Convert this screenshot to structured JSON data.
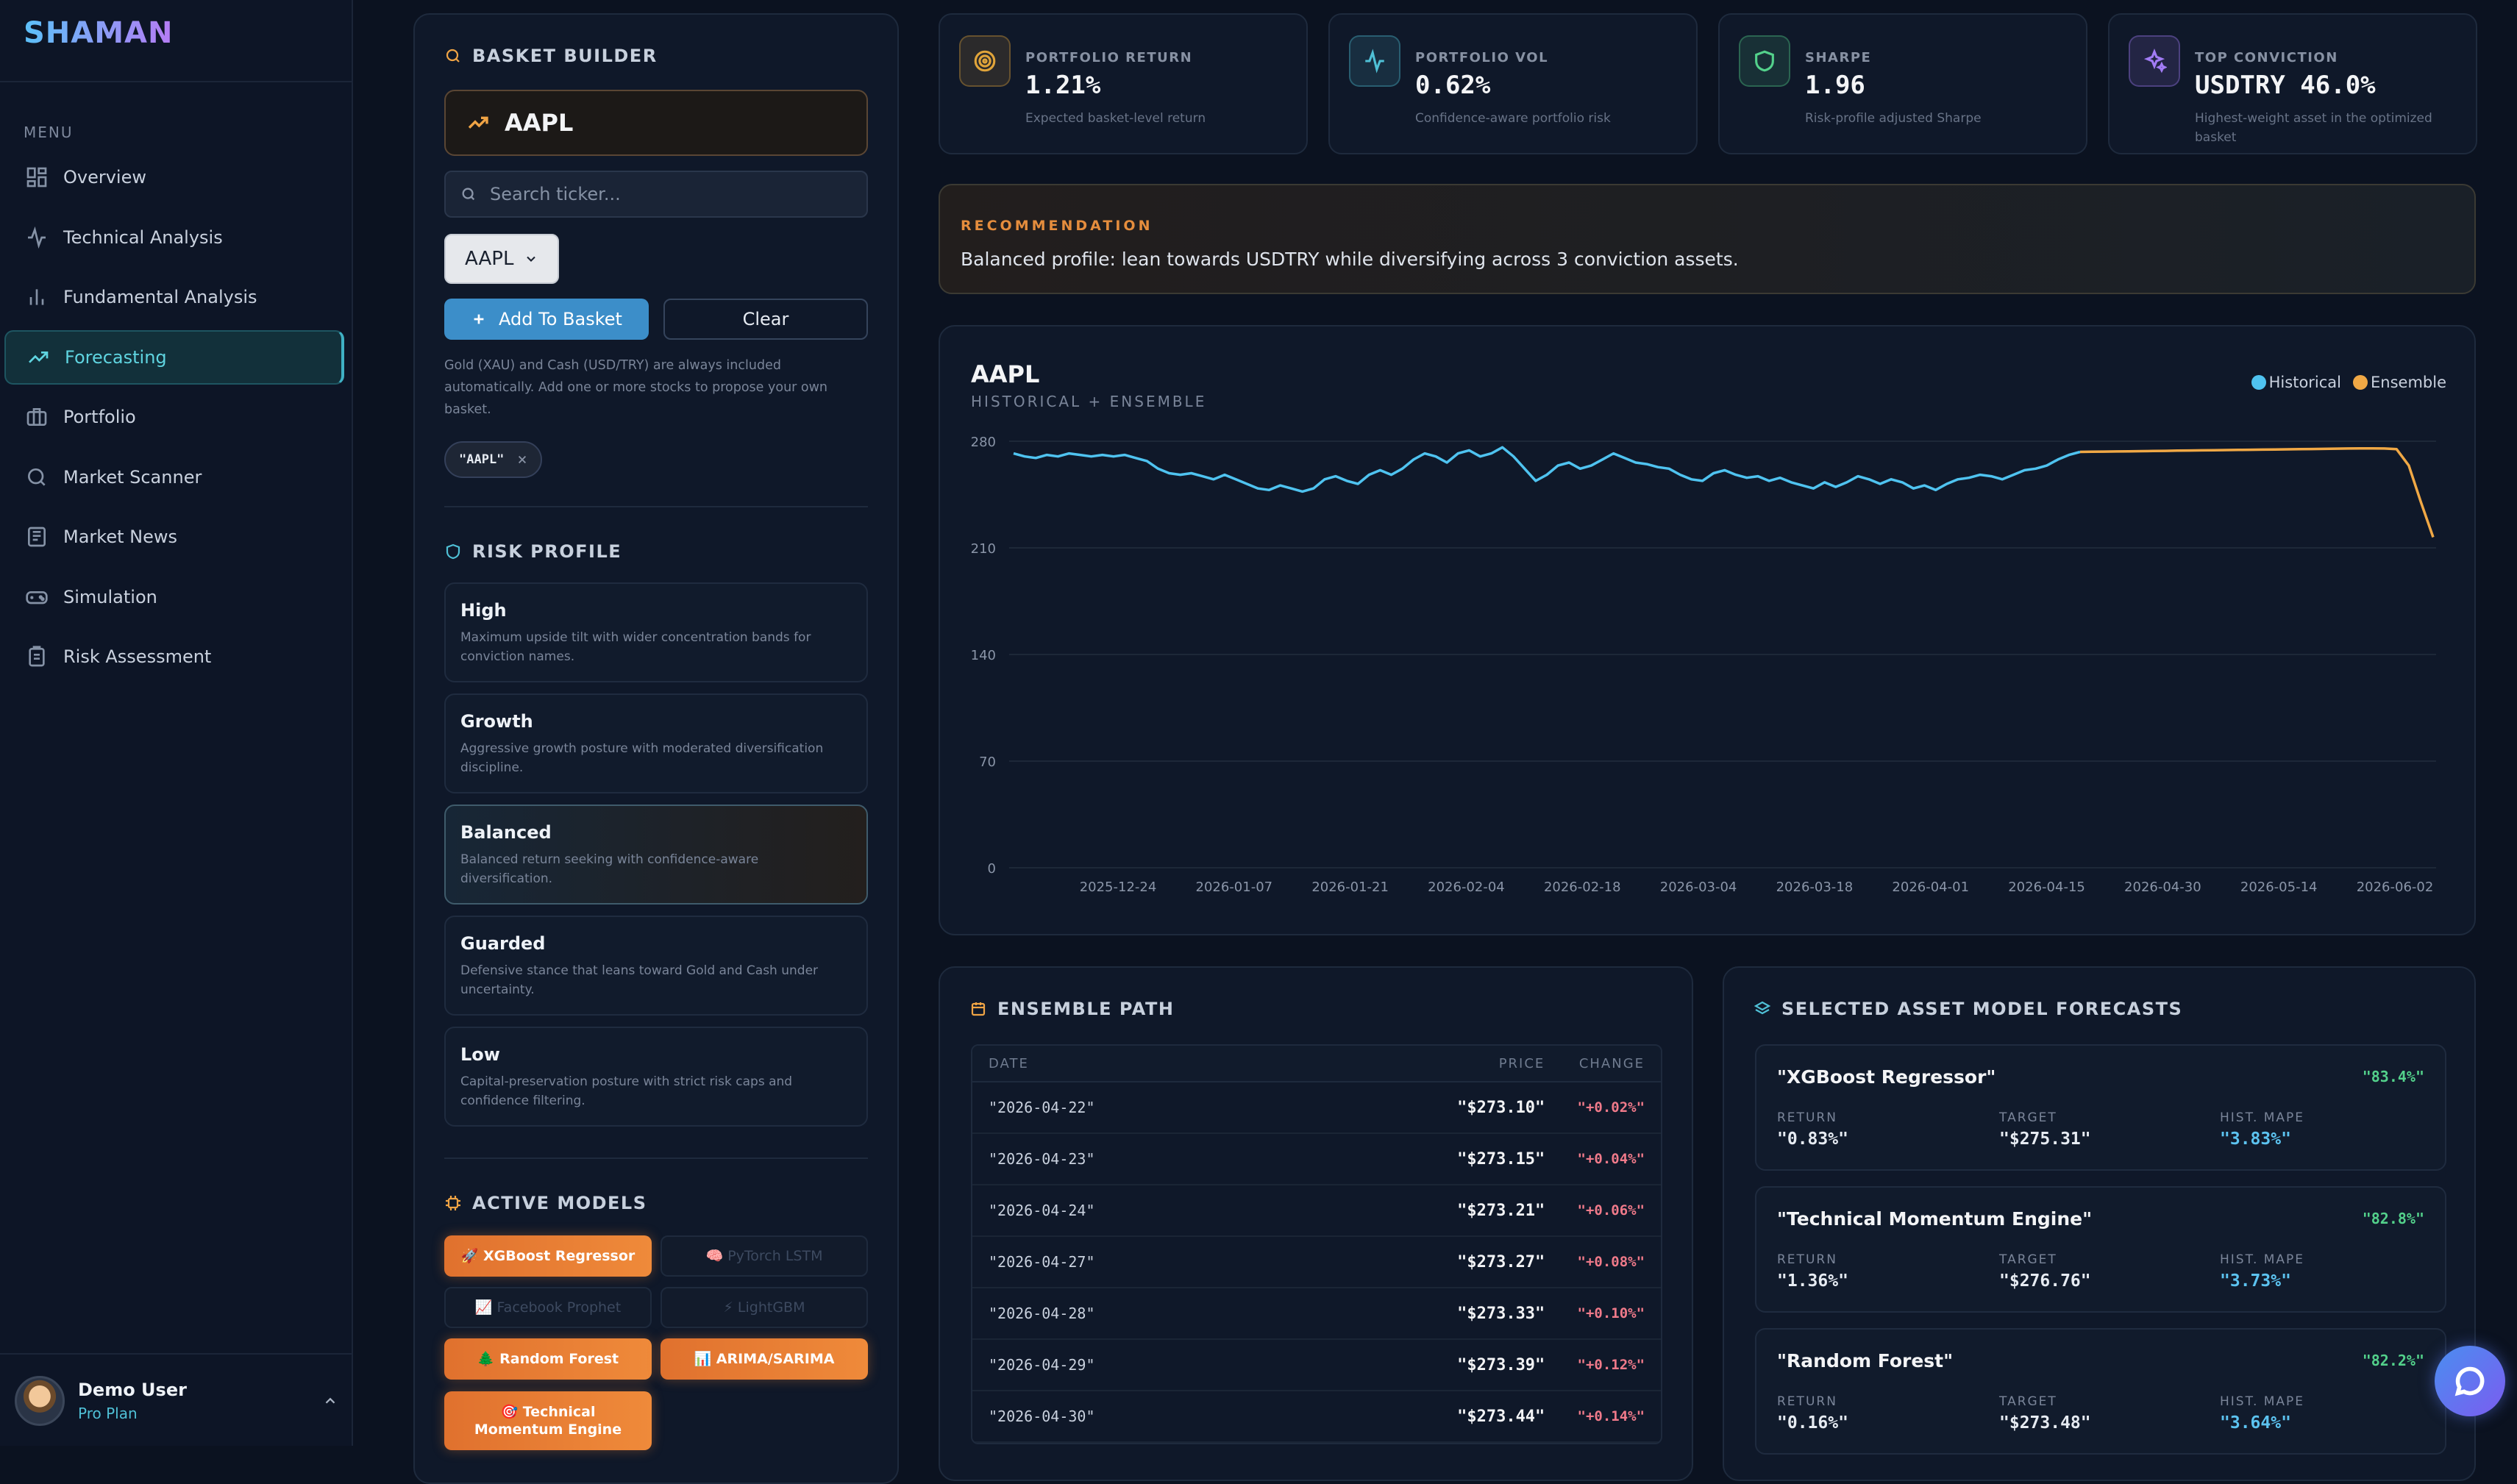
{
  "app": {
    "logo": "SHAMAN",
    "menu_label": "MENU"
  },
  "nav": [
    {
      "label": "Overview",
      "icon": "grid-icon"
    },
    {
      "label": "Technical Analysis",
      "icon": "pulse-icon"
    },
    {
      "label": "Fundamental Analysis",
      "icon": "bar-chart-icon"
    },
    {
      "label": "Forecasting",
      "icon": "trend-up-icon",
      "active": true
    },
    {
      "label": "Portfolio",
      "icon": "briefcase-icon"
    },
    {
      "label": "Market Scanner",
      "icon": "search-icon"
    },
    {
      "label": "Market News",
      "icon": "newspaper-icon"
    },
    {
      "label": "Simulation",
      "icon": "gamepad-icon"
    },
    {
      "label": "Risk Assessment",
      "icon": "clipboard-icon"
    }
  ],
  "user": {
    "name": "Demo User",
    "plan": "Pro Plan"
  },
  "basket": {
    "title": "BASKET BUILDER",
    "ticker": "AAPL",
    "search_placeholder": "Search ticker...",
    "selected": "AAPL",
    "add_label": "Add To Basket",
    "clear_label": "Clear",
    "note": "Gold (XAU) and Cash (USD/TRY) are always included automatically. Add one or more stocks to propose your own basket.",
    "chips": [
      "\"AAPL\""
    ]
  },
  "risk": {
    "title": "RISK PROFILE",
    "profiles": [
      {
        "name": "High",
        "desc": "Maximum upside tilt with wider concentration bands for conviction names."
      },
      {
        "name": "Growth",
        "desc": "Aggressive growth posture with moderated diversification discipline."
      },
      {
        "name": "Balanced",
        "desc": "Balanced return seeking with confidence-aware diversification.",
        "selected": true
      },
      {
        "name": "Guarded",
        "desc": "Defensive stance that leans toward Gold and Cash under uncertainty."
      },
      {
        "name": "Low",
        "desc": "Capital-preservation posture with strict risk caps and confidence filtering."
      }
    ]
  },
  "models": {
    "title": "ACTIVE MODELS",
    "items": [
      {
        "label": "🚀 XGBoost Regressor",
        "on": true
      },
      {
        "label": "🧠 PyTorch LSTM",
        "on": false
      },
      {
        "label": "📈 Facebook Prophet",
        "on": false
      },
      {
        "label": "⚡ LightGBM",
        "on": false
      },
      {
        "label": "🌲 Random Forest",
        "on": true
      },
      {
        "label": "📊 ARIMA/SARIMA",
        "on": true
      },
      {
        "label": "🎯 Technical Momentum Engine",
        "on": true
      }
    ]
  },
  "stats": [
    {
      "label": "PORTFOLIO RETURN",
      "value": "1.21%",
      "desc": "Expected basket-level return",
      "icon": "target-icon",
      "color": "#e0a43a"
    },
    {
      "label": "PORTFOLIO VOL",
      "value": "0.62%",
      "desc": "Confidence-aware portfolio risk",
      "icon": "pulse-icon",
      "color": "#4fc0d6"
    },
    {
      "label": "SHARPE",
      "value": "1.96",
      "desc": "Risk-profile adjusted Sharpe",
      "icon": "shield-icon",
      "color": "#53d18b"
    },
    {
      "label": "TOP CONVICTION",
      "value": "USDTRY 46.0%",
      "desc": "Highest-weight asset in the optimized basket",
      "icon": "sparkle-icon",
      "color": "#a27cf5"
    }
  ],
  "recommendation": {
    "label": "RECOMMENDATION",
    "text": "Balanced profile: lean towards USDTRY while diversifying across 3 conviction assets."
  },
  "chart_data": {
    "type": "line",
    "title": "AAPL",
    "subtitle": "HISTORICAL + ENSEMBLE",
    "ylim": [
      0,
      280
    ],
    "yticks": [
      0,
      70,
      140,
      210,
      280
    ],
    "xticks": [
      "2025-12-24",
      "2026-01-07",
      "2026-01-21",
      "2026-02-04",
      "2026-02-18",
      "2026-03-04",
      "2026-03-18",
      "2026-04-01",
      "2026-04-15",
      "2026-04-30",
      "2026-05-14",
      "2026-06-02"
    ],
    "legend_position": "top-right",
    "grid": true,
    "series": [
      {
        "name": "Historical",
        "color": "#4fc3f0",
        "values": [
          272,
          270,
          269,
          271,
          270,
          272,
          271,
          270,
          271,
          270,
          271,
          269,
          267,
          262,
          259,
          258,
          259,
          257,
          255,
          258,
          255,
          252,
          249,
          248,
          251,
          249,
          247,
          249,
          255,
          257,
          254,
          252,
          258,
          261,
          258,
          262,
          268,
          272,
          270,
          266,
          272,
          274,
          270,
          272,
          276,
          270,
          262,
          254,
          258,
          264,
          266,
          262,
          264,
          268,
          272,
          269,
          266,
          265,
          263,
          262,
          258,
          255,
          254,
          259,
          261,
          258,
          256,
          257,
          254,
          256,
          253,
          251,
          249,
          253,
          250,
          253,
          257,
          255,
          252,
          255,
          253,
          249,
          251,
          248,
          252,
          255,
          256,
          258,
          257,
          255,
          258,
          261,
          262,
          264,
          268,
          271,
          273
        ]
      },
      {
        "name": "Ensemble",
        "color": "#f0a845",
        "values": [
          273,
          273.1,
          273.2,
          273.3,
          273.4,
          273.5,
          273.6,
          273.7,
          273.8,
          273.9,
          274,
          274.1,
          274.2,
          274.3,
          274.4,
          274.5,
          274.6,
          274.7,
          274.8,
          274.9,
          275,
          275.1,
          275.2,
          275.3,
          275.3,
          275.2,
          274.8,
          264,
          240,
          217
        ]
      }
    ]
  },
  "ensemble": {
    "title": "ENSEMBLE PATH",
    "headers": [
      "DATE",
      "PRICE",
      "CHANGE"
    ],
    "rows": [
      {
        "date": "\"2026-04-22\"",
        "price": "\"$273.10\"",
        "change": "\"+0.02%\""
      },
      {
        "date": "\"2026-04-23\"",
        "price": "\"$273.15\"",
        "change": "\"+0.04%\""
      },
      {
        "date": "\"2026-04-24\"",
        "price": "\"$273.21\"",
        "change": "\"+0.06%\""
      },
      {
        "date": "\"2026-04-27\"",
        "price": "\"$273.27\"",
        "change": "\"+0.08%\""
      },
      {
        "date": "\"2026-04-28\"",
        "price": "\"$273.33\"",
        "change": "\"+0.10%\""
      },
      {
        "date": "\"2026-04-29\"",
        "price": "\"$273.39\"",
        "change": "\"+0.12%\""
      },
      {
        "date": "\"2026-04-30\"",
        "price": "\"$273.44\"",
        "change": "\"+0.14%\""
      }
    ]
  },
  "forecasts": {
    "title": "SELECTED ASSET MODEL FORECASTS",
    "col_labels": [
      "RETURN",
      "TARGET",
      "HIST. MAPE"
    ],
    "items": [
      {
        "name": "\"XGBoost Regressor\"",
        "acc": "\"83.4%\"",
        "ret": "\"0.83%\"",
        "target": "\"$275.31\"",
        "mape": "\"3.83%\""
      },
      {
        "name": "\"Technical Momentum Engine\"",
        "acc": "\"82.8%\"",
        "ret": "\"1.36%\"",
        "target": "\"$276.76\"",
        "mape": "\"3.73%\""
      },
      {
        "name": "\"Random Forest\"",
        "acc": "\"82.2%\"",
        "ret": "\"0.16%\"",
        "target": "\"$273.48\"",
        "mape": "\"3.64%\""
      }
    ]
  }
}
